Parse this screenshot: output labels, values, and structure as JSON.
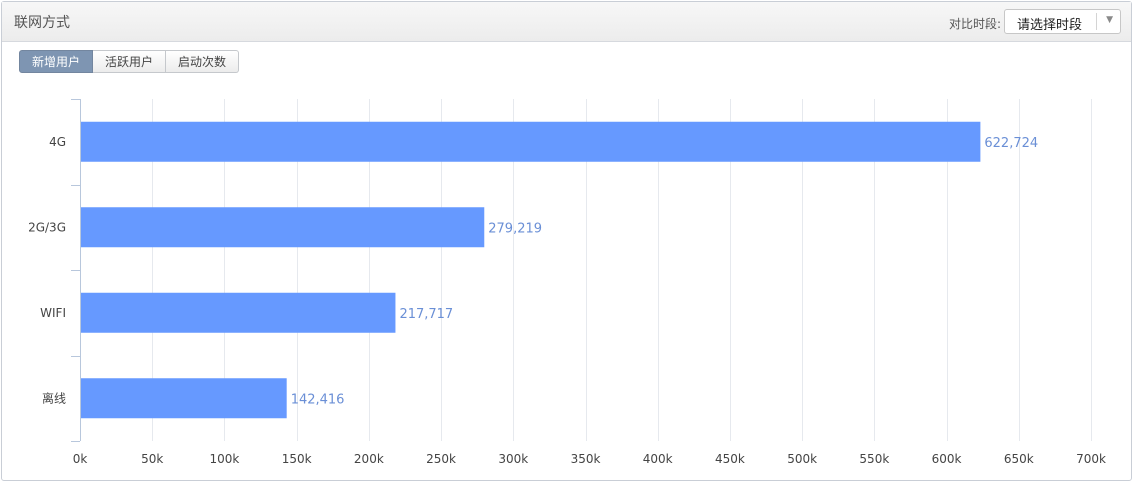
{
  "panel": {
    "title": "联网方式"
  },
  "compare": {
    "label": "对比时段:",
    "select_value": "请选择时段",
    "arrow_icon": "caret-down-icon"
  },
  "tabs": [
    {
      "label": "新增用户",
      "active": true
    },
    {
      "label": "活跃用户",
      "active": false
    },
    {
      "label": "启动次数",
      "active": false
    }
  ],
  "chart_data": {
    "type": "bar",
    "orientation": "horizontal",
    "categories": [
      "4G",
      "2G/3G",
      "WIFI",
      "离线"
    ],
    "values": [
      622724,
      279219,
      217717,
      142416
    ],
    "value_labels": [
      "622,724",
      "279,219",
      "217,717",
      "142,416"
    ],
    "xlim": [
      0,
      700000
    ],
    "x_ticks": [
      0,
      50000,
      100000,
      150000,
      200000,
      250000,
      300000,
      350000,
      400000,
      450000,
      500000,
      550000,
      600000,
      650000,
      700000
    ],
    "x_tick_labels": [
      "0k",
      "50k",
      "100k",
      "150k",
      "200k",
      "250k",
      "300k",
      "350k",
      "400k",
      "450k",
      "500k",
      "550k",
      "600k",
      "650k",
      "700k"
    ],
    "grid": true,
    "colors": {
      "bar": "#6699ff",
      "value_label": "#6a8fd6",
      "grid": "#e6e9ee",
      "axis": "#b8c7dc"
    }
  }
}
